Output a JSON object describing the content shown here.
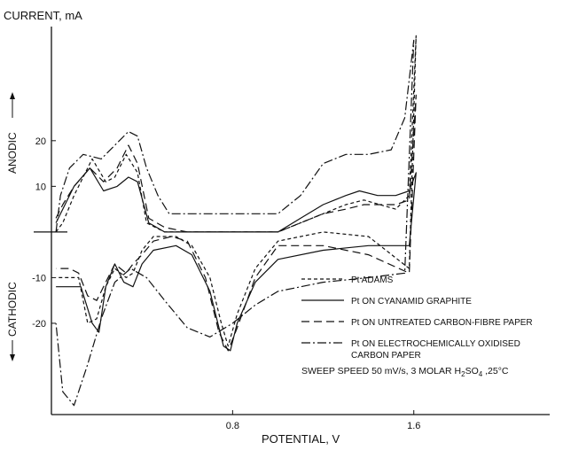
{
  "chart_data": {
    "type": "line",
    "title": "",
    "xlabel": "POTENTIAL, V",
    "ylabel": "CURRENT, mA",
    "xlim": [
      0.0,
      2.2
    ],
    "ylim": [
      -40,
      45
    ],
    "x_ticks": [
      {
        "value": 0.8,
        "label": "0.8"
      },
      {
        "value": 1.6,
        "label": "1.6"
      }
    ],
    "y_ticks": [
      {
        "value": 20,
        "label": "20"
      },
      {
        "value": 10,
        "label": "10"
      },
      {
        "value": -10,
        "label": "-10"
      },
      {
        "value": -20,
        "label": "-20"
      }
    ],
    "region_labels": {
      "anodic": "ANODIC",
      "cathodic": "CATHODIC"
    },
    "grid": false,
    "legend_position": "right",
    "series": [
      {
        "name": "Pt ADAMS",
        "dash": "4,3",
        "points": [
          [
            0.02,
            0
          ],
          [
            0.05,
            2
          ],
          [
            0.1,
            8
          ],
          [
            0.18,
            16
          ],
          [
            0.24,
            11
          ],
          [
            0.28,
            12
          ],
          [
            0.33,
            17
          ],
          [
            0.38,
            13
          ],
          [
            0.42,
            2
          ],
          [
            0.5,
            0
          ],
          [
            0.6,
            0
          ],
          [
            0.8,
            0
          ],
          [
            1.0,
            0
          ],
          [
            1.1,
            2
          ],
          [
            1.2,
            4
          ],
          [
            1.3,
            6
          ],
          [
            1.38,
            7
          ],
          [
            1.45,
            6
          ],
          [
            1.52,
            5
          ],
          [
            1.58,
            8
          ],
          [
            1.61,
            43
          ],
          [
            1.58,
            -8
          ],
          [
            1.4,
            -1
          ],
          [
            1.2,
            0
          ],
          [
            1.0,
            -2
          ],
          [
            0.9,
            -8
          ],
          [
            0.82,
            -18
          ],
          [
            0.78,
            -25
          ],
          [
            0.75,
            -20
          ],
          [
            0.7,
            -10
          ],
          [
            0.62,
            -3
          ],
          [
            0.55,
            -1
          ],
          [
            0.45,
            -1
          ],
          [
            0.4,
            -4
          ],
          [
            0.36,
            -9
          ],
          [
            0.33,
            -10
          ],
          [
            0.28,
            -8
          ],
          [
            0.24,
            -12
          ],
          [
            0.2,
            -19
          ],
          [
            0.16,
            -20
          ],
          [
            0.12,
            -10
          ],
          [
            0.08,
            -10
          ],
          [
            0.02,
            -10
          ]
        ]
      },
      {
        "name": "Pt ON CYANAMID GRAPHITE",
        "dash": "",
        "points": [
          [
            0.02,
            2
          ],
          [
            0.05,
            5
          ],
          [
            0.1,
            10
          ],
          [
            0.17,
            14
          ],
          [
            0.23,
            9
          ],
          [
            0.29,
            10
          ],
          [
            0.34,
            12
          ],
          [
            0.38,
            11
          ],
          [
            0.43,
            2
          ],
          [
            0.5,
            0
          ],
          [
            0.6,
            0
          ],
          [
            0.8,
            0
          ],
          [
            1.0,
            0
          ],
          [
            1.1,
            3
          ],
          [
            1.2,
            6
          ],
          [
            1.3,
            8
          ],
          [
            1.36,
            9
          ],
          [
            1.44,
            8
          ],
          [
            1.52,
            8
          ],
          [
            1.58,
            9
          ],
          [
            1.61,
            13
          ],
          [
            1.58,
            -3
          ],
          [
            1.4,
            -3
          ],
          [
            1.2,
            -4
          ],
          [
            1.0,
            -6
          ],
          [
            0.9,
            -11
          ],
          [
            0.82,
            -20
          ],
          [
            0.79,
            -26
          ],
          [
            0.76,
            -25
          ],
          [
            0.7,
            -13
          ],
          [
            0.62,
            -5
          ],
          [
            0.55,
            -3
          ],
          [
            0.45,
            -4
          ],
          [
            0.4,
            -7
          ],
          [
            0.36,
            -12
          ],
          [
            0.32,
            -11
          ],
          [
            0.28,
            -7
          ],
          [
            0.24,
            -12
          ],
          [
            0.21,
            -22
          ],
          [
            0.18,
            -20
          ],
          [
            0.13,
            -12
          ],
          [
            0.08,
            -12
          ],
          [
            0.02,
            -12
          ]
        ]
      },
      {
        "name": "Pt ON UNTREATED CARBON-FIBRE PAPER",
        "dash": "9,5",
        "points": [
          [
            0.02,
            3
          ],
          [
            0.05,
            6
          ],
          [
            0.1,
            10
          ],
          [
            0.17,
            14
          ],
          [
            0.23,
            11
          ],
          [
            0.29,
            14
          ],
          [
            0.34,
            19
          ],
          [
            0.38,
            15
          ],
          [
            0.43,
            3
          ],
          [
            0.5,
            1
          ],
          [
            0.6,
            0
          ],
          [
            0.8,
            0
          ],
          [
            1.0,
            0
          ],
          [
            1.1,
            2
          ],
          [
            1.2,
            4
          ],
          [
            1.3,
            5
          ],
          [
            1.38,
            6
          ],
          [
            1.45,
            6
          ],
          [
            1.52,
            6
          ],
          [
            1.58,
            7
          ],
          [
            1.61,
            30
          ],
          [
            1.58,
            -9
          ],
          [
            1.4,
            -5
          ],
          [
            1.2,
            -3
          ],
          [
            1.0,
            -3
          ],
          [
            0.9,
            -10
          ],
          [
            0.82,
            -21
          ],
          [
            0.78,
            -26
          ],
          [
            0.74,
            -22
          ],
          [
            0.68,
            -10
          ],
          [
            0.6,
            -2
          ],
          [
            0.53,
            -1
          ],
          [
            0.45,
            -2
          ],
          [
            0.4,
            -5
          ],
          [
            0.36,
            -7
          ],
          [
            0.33,
            -9
          ],
          [
            0.28,
            -7
          ],
          [
            0.24,
            -11
          ],
          [
            0.2,
            -15
          ],
          [
            0.16,
            -14
          ],
          [
            0.12,
            -9
          ],
          [
            0.08,
            -8
          ],
          [
            0.02,
            -8
          ]
        ]
      },
      {
        "name": "Pt ON ELECTROCHEMICALLY OXIDISED CARBON PAPER",
        "dash": "10,3,2,3",
        "points": [
          [
            0.02,
            0
          ],
          [
            0.04,
            8
          ],
          [
            0.08,
            14
          ],
          [
            0.14,
            17
          ],
          [
            0.22,
            16
          ],
          [
            0.28,
            19
          ],
          [
            0.34,
            22
          ],
          [
            0.38,
            21
          ],
          [
            0.42,
            14
          ],
          [
            0.47,
            8
          ],
          [
            0.52,
            4
          ],
          [
            0.6,
            4
          ],
          [
            0.7,
            4
          ],
          [
            0.8,
            4
          ],
          [
            0.9,
            4
          ],
          [
            1.0,
            4
          ],
          [
            1.1,
            8
          ],
          [
            1.2,
            15
          ],
          [
            1.3,
            17
          ],
          [
            1.4,
            17
          ],
          [
            1.5,
            18
          ],
          [
            1.56,
            25
          ],
          [
            1.6,
            42
          ],
          [
            1.56,
            -9
          ],
          [
            1.4,
            -10
          ],
          [
            1.2,
            -11
          ],
          [
            1.0,
            -13
          ],
          [
            0.9,
            -16
          ],
          [
            0.8,
            -20
          ],
          [
            0.7,
            -23
          ],
          [
            0.6,
            -21
          ],
          [
            0.5,
            -15
          ],
          [
            0.42,
            -10
          ],
          [
            0.35,
            -8
          ],
          [
            0.28,
            -11
          ],
          [
            0.22,
            -19
          ],
          [
            0.16,
            -29
          ],
          [
            0.1,
            -38
          ],
          [
            0.05,
            -35
          ],
          [
            0.02,
            -20
          ]
        ]
      }
    ],
    "annotation": {
      "prefix": "SWEEP SPEED 50 mV/s, 3 MOLAR H",
      "sub1": "2",
      "mid": "SO",
      "sub2": "4",
      "suffix": " ,25°C"
    }
  }
}
